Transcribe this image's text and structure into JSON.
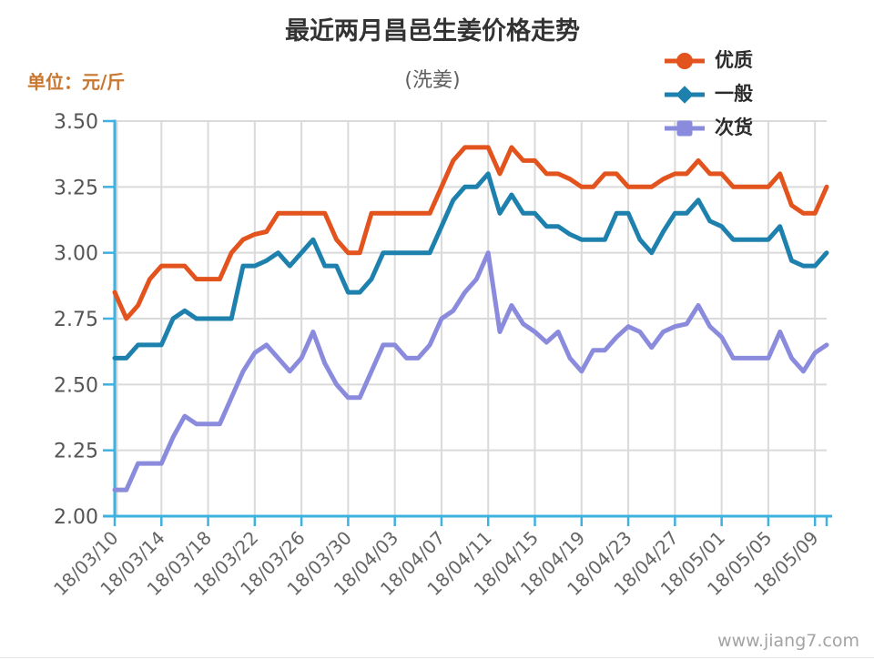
{
  "title": "最近两月昌邑生姜价格走势",
  "subtitle": "(洗姜)",
  "unit_label": "单位：元/斤",
  "watermark": "www.jiang7.com",
  "colors": {
    "premium": "#e2531d",
    "normal": "#1e81ad",
    "inferior": "#8a8bdc",
    "axis": "#3eb1e1",
    "grid": "#dadada",
    "tick_text": "#555555",
    "xlabel_text": "#666666",
    "unit_text": "#c9762e"
  },
  "chart_data": {
    "type": "line",
    "title": "最近两月昌邑生姜价格走势",
    "subtitle": "(洗姜)",
    "ylabel": "单位：元/斤",
    "ylim": [
      2.0,
      3.5
    ],
    "y_step": 0.25,
    "ytick_labels": [
      "3.50",
      "3.25",
      "3.00",
      "2.75",
      "2.50",
      "2.25",
      "2.00"
    ],
    "grid": true,
    "legend_position": "top-right",
    "x_label_interval_days": 4,
    "x_labels": [
      "18/03/10",
      "18/03/14",
      "18/03/18",
      "18/03/22",
      "18/03/26",
      "18/03/30",
      "18/04/03",
      "18/04/07",
      "18/04/11",
      "18/04/15",
      "18/04/19",
      "18/04/23",
      "18/04/27",
      "18/05/01",
      "18/05/05",
      "18/05/09"
    ],
    "series": [
      {
        "name": "优质",
        "key": "premium",
        "marker": "circle",
        "color_key": "premium",
        "values": [
          2.85,
          2.75,
          2.8,
          2.9,
          2.95,
          2.95,
          2.95,
          2.9,
          2.9,
          2.9,
          3.0,
          3.05,
          3.07,
          3.08,
          3.15,
          3.15,
          3.15,
          3.15,
          3.15,
          3.05,
          3.0,
          3.0,
          3.15,
          3.15,
          3.15,
          3.15,
          3.15,
          3.15,
          3.25,
          3.35,
          3.4,
          3.4,
          3.4,
          3.3,
          3.4,
          3.35,
          3.35,
          3.3,
          3.3,
          3.28,
          3.25,
          3.25,
          3.3,
          3.3,
          3.25,
          3.25,
          3.25,
          3.28,
          3.3,
          3.3,
          3.35,
          3.3,
          3.3,
          3.25,
          3.25,
          3.25,
          3.25,
          3.3,
          3.18,
          3.15,
          3.15,
          3.25
        ]
      },
      {
        "name": "一般",
        "key": "normal",
        "marker": "diamond",
        "color_key": "normal",
        "values": [
          2.6,
          2.6,
          2.65,
          2.65,
          2.65,
          2.75,
          2.78,
          2.75,
          2.75,
          2.75,
          2.75,
          2.95,
          2.95,
          2.97,
          3.0,
          2.95,
          3.0,
          3.05,
          2.95,
          2.95,
          2.85,
          2.85,
          2.9,
          3.0,
          3.0,
          3.0,
          3.0,
          3.0,
          3.1,
          3.2,
          3.25,
          3.25,
          3.3,
          3.15,
          3.22,
          3.15,
          3.15,
          3.1,
          3.1,
          3.07,
          3.05,
          3.05,
          3.05,
          3.15,
          3.15,
          3.05,
          3.0,
          3.08,
          3.15,
          3.15,
          3.2,
          3.12,
          3.1,
          3.05,
          3.05,
          3.05,
          3.05,
          3.1,
          2.97,
          2.95,
          2.95,
          3.0
        ]
      },
      {
        "name": "次货",
        "key": "inferior",
        "marker": "square",
        "color_key": "inferior",
        "values": [
          2.1,
          2.1,
          2.2,
          2.2,
          2.2,
          2.3,
          2.38,
          2.35,
          2.35,
          2.35,
          2.45,
          2.55,
          2.62,
          2.65,
          2.6,
          2.55,
          2.6,
          2.7,
          2.58,
          2.5,
          2.45,
          2.45,
          2.55,
          2.65,
          2.65,
          2.6,
          2.6,
          2.65,
          2.75,
          2.78,
          2.85,
          2.9,
          3.0,
          2.7,
          2.8,
          2.73,
          2.7,
          2.66,
          2.7,
          2.6,
          2.55,
          2.63,
          2.63,
          2.68,
          2.72,
          2.7,
          2.64,
          2.7,
          2.72,
          2.73,
          2.8,
          2.72,
          2.68,
          2.6,
          2.6,
          2.6,
          2.6,
          2.7,
          2.6,
          2.55,
          2.62,
          2.65
        ]
      }
    ]
  }
}
